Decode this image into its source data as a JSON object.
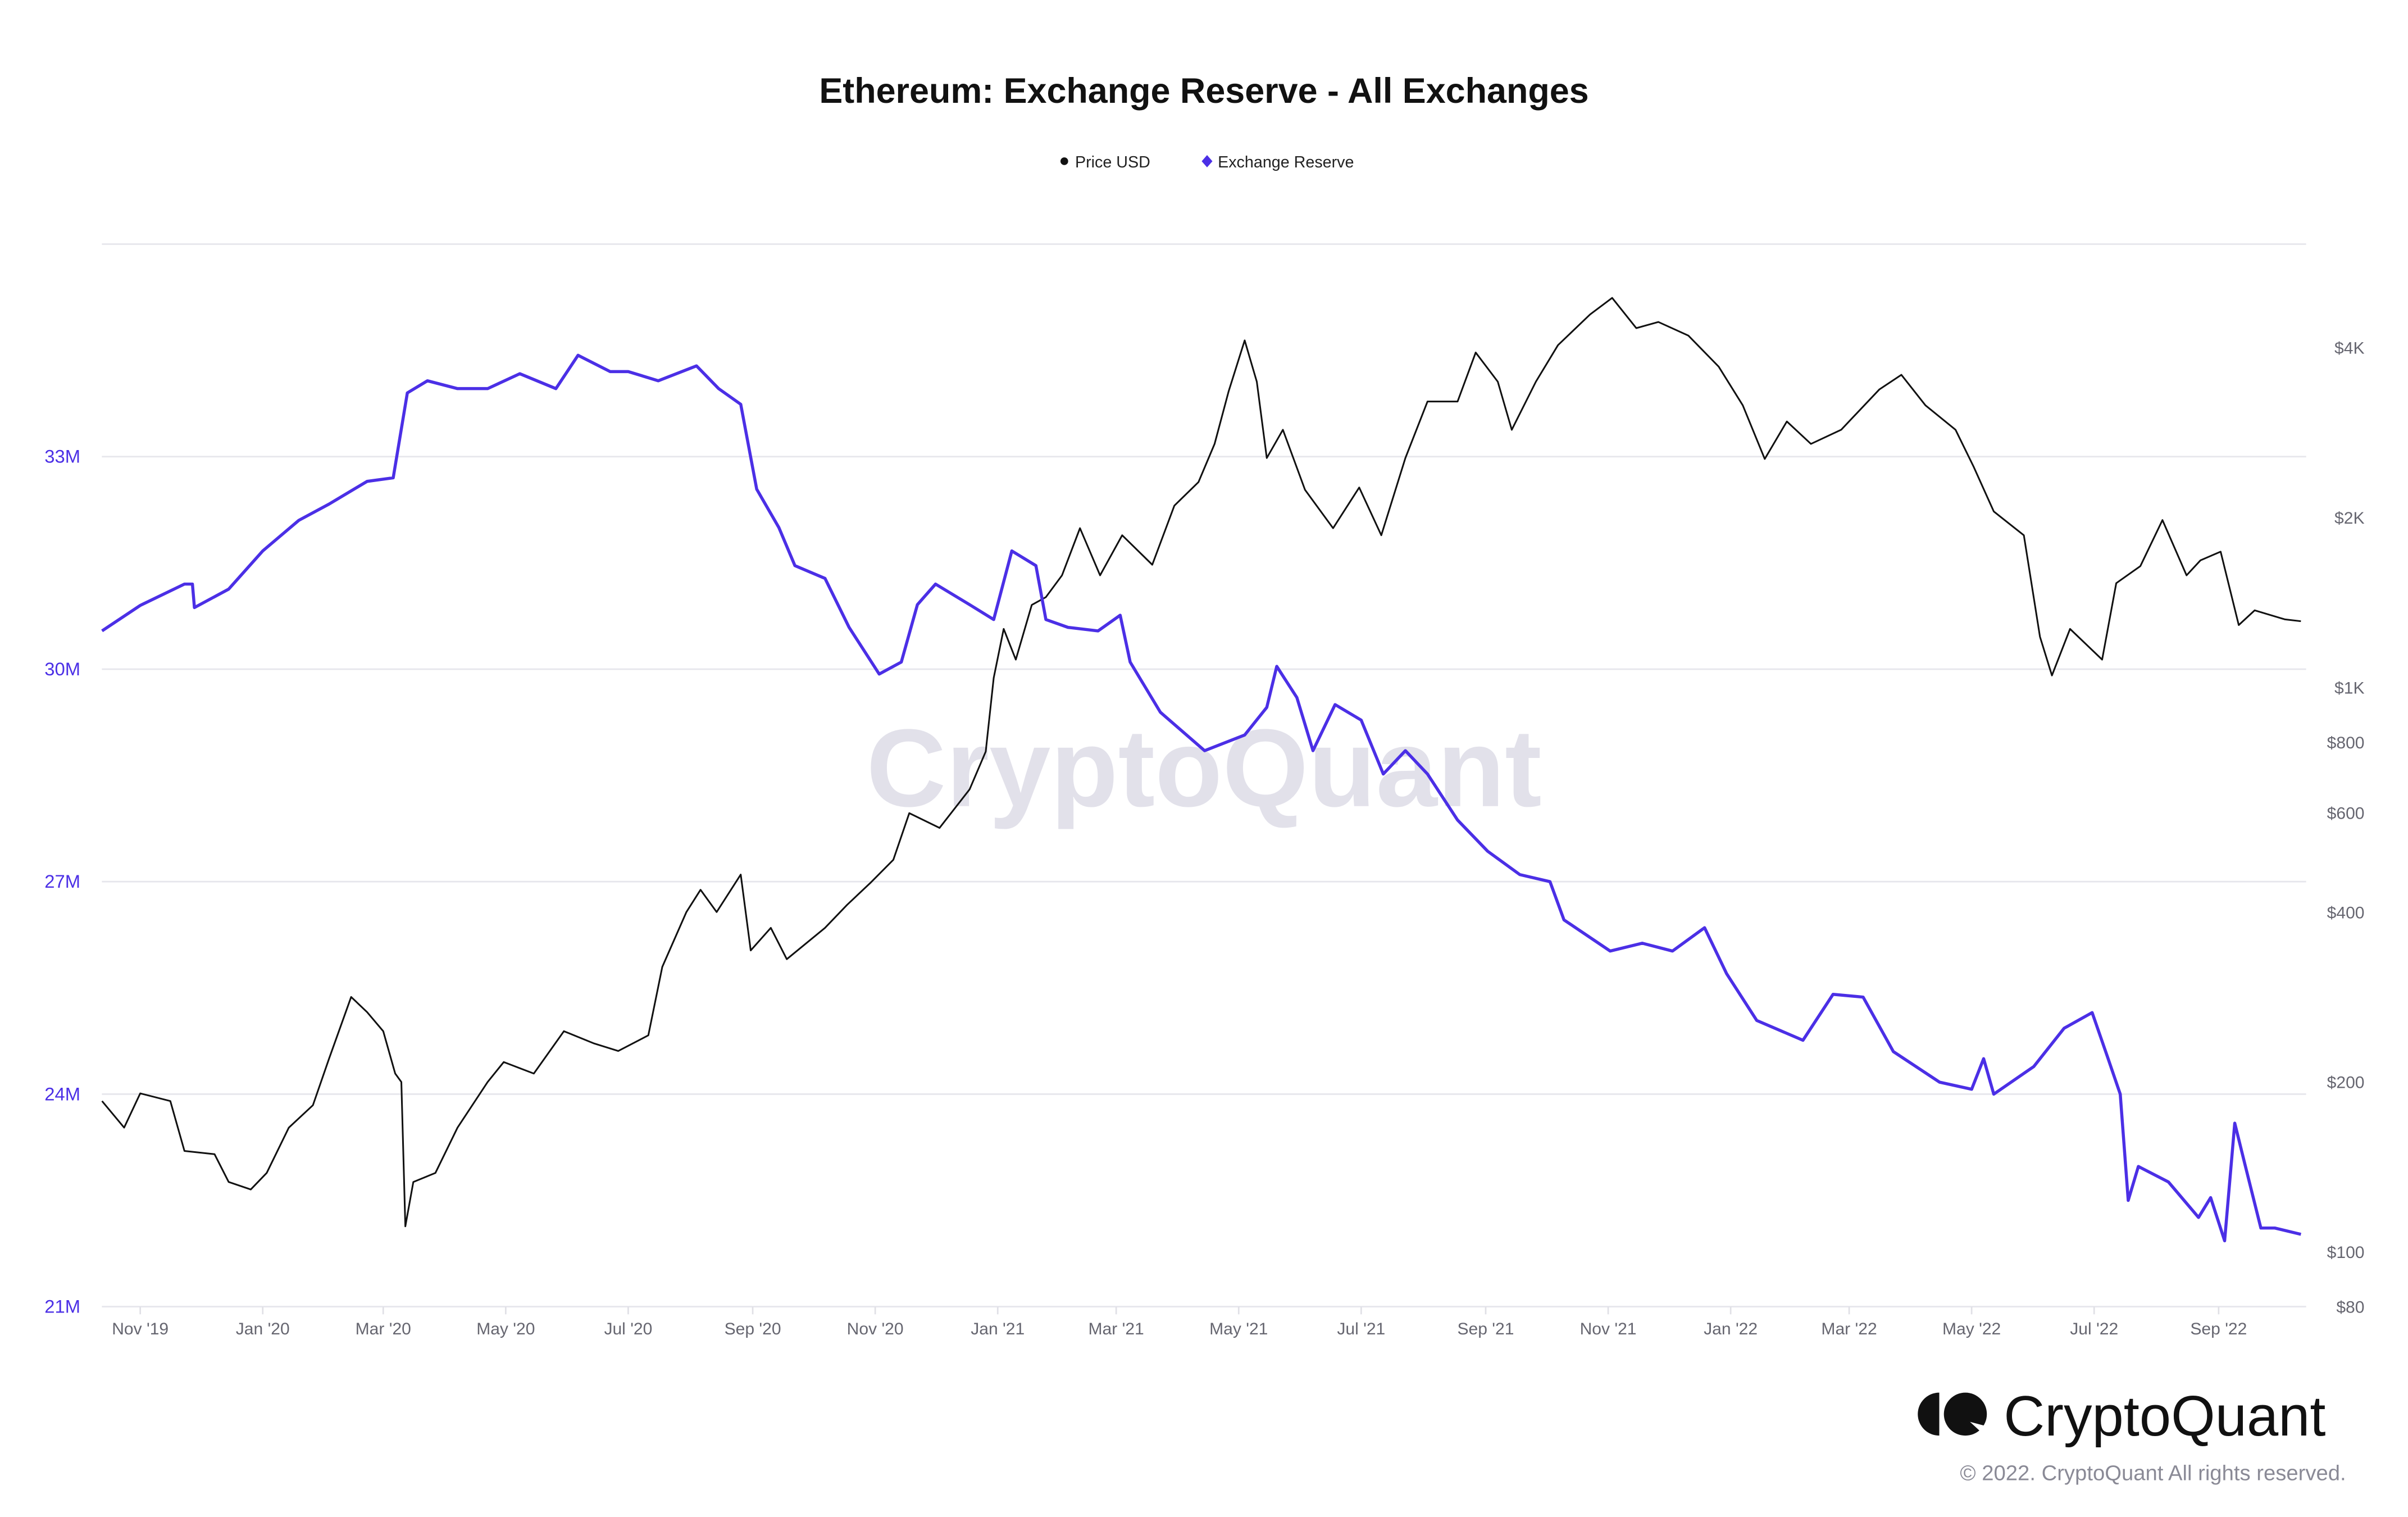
{
  "chart_data": {
    "type": "line",
    "title": "Ethereum: Exchange Reserve - All Exchanges",
    "legend": [
      {
        "label": "Price USD",
        "color": "#111111",
        "marker": "circle"
      },
      {
        "label": "Exchange Reserve",
        "color": "#4b2fe6",
        "marker": "diamond"
      }
    ],
    "legend_position": "top-center",
    "grid": true,
    "left_axis": {
      "unit": "M",
      "range": [
        21,
        36
      ],
      "ticks": [
        {
          "value": 21,
          "label": "21M"
        },
        {
          "value": 24,
          "label": "24M"
        },
        {
          "value": 27,
          "label": "27M"
        },
        {
          "value": 30,
          "label": "30M"
        },
        {
          "value": 33,
          "label": "33M"
        }
      ]
    },
    "right_axis": {
      "scale": "log",
      "range": [
        80,
        6100
      ],
      "ticks": [
        {
          "value": 80,
          "label": "$80"
        },
        {
          "value": 100,
          "label": "$100"
        },
        {
          "value": 200,
          "label": "$200"
        },
        {
          "value": 400,
          "label": "$400"
        },
        {
          "value": 600,
          "label": "$600"
        },
        {
          "value": 800,
          "label": "$800"
        },
        {
          "value": 1000,
          "label": "$1K"
        },
        {
          "value": 2000,
          "label": "$2K"
        },
        {
          "value": 4000,
          "label": "$4K"
        }
      ]
    },
    "x_axis": {
      "range": [
        "2019-10-13",
        "2022-10-12"
      ],
      "ticks": [
        {
          "date": "2019-11-01",
          "label": "Nov '19"
        },
        {
          "date": "2020-01-01",
          "label": "Jan '20"
        },
        {
          "date": "2020-03-01",
          "label": "Mar '20"
        },
        {
          "date": "2020-05-01",
          "label": "May '20"
        },
        {
          "date": "2020-07-01",
          "label": "Jul '20"
        },
        {
          "date": "2020-09-01",
          "label": "Sep '20"
        },
        {
          "date": "2020-11-01",
          "label": "Nov '20"
        },
        {
          "date": "2021-01-01",
          "label": "Jan '21"
        },
        {
          "date": "2021-03-01",
          "label": "Mar '21"
        },
        {
          "date": "2021-05-01",
          "label": "May '21"
        },
        {
          "date": "2021-07-01",
          "label": "Jul '21"
        },
        {
          "date": "2021-09-01",
          "label": "Sep '21"
        },
        {
          "date": "2021-11-01",
          "label": "Nov '21"
        },
        {
          "date": "2022-01-01",
          "label": "Jan '22"
        },
        {
          "date": "2022-03-01",
          "label": "Mar '22"
        },
        {
          "date": "2022-05-01",
          "label": "May '22"
        },
        {
          "date": "2022-07-01",
          "label": "Jul '22"
        },
        {
          "date": "2022-09-01",
          "label": "Sep '22"
        }
      ]
    },
    "series": [
      {
        "name": "Price USD",
        "axis": "right",
        "color": "#111111",
        "points": [
          [
            "2019-10-13",
            185
          ],
          [
            "2019-10-24",
            166
          ],
          [
            "2019-11-01",
            191
          ],
          [
            "2019-11-16",
            185
          ],
          [
            "2019-11-23",
            151
          ],
          [
            "2019-12-08",
            149
          ],
          [
            "2019-12-15",
            133
          ],
          [
            "2019-12-26",
            129
          ],
          [
            "2020-01-03",
            138
          ],
          [
            "2020-01-14",
            166
          ],
          [
            "2020-01-26",
            182
          ],
          [
            "2020-02-03",
            220
          ],
          [
            "2020-02-14",
            283
          ],
          [
            "2020-02-22",
            266
          ],
          [
            "2020-03-01",
            246
          ],
          [
            "2020-03-07",
            207
          ],
          [
            "2020-03-10",
            200
          ],
          [
            "2020-03-12",
            111
          ],
          [
            "2020-03-16",
            133
          ],
          [
            "2020-03-27",
            138
          ],
          [
            "2020-04-07",
            166
          ],
          [
            "2020-04-22",
            200
          ],
          [
            "2020-04-30",
            217
          ],
          [
            "2020-05-15",
            207
          ],
          [
            "2020-05-30",
            246
          ],
          [
            "2020-06-14",
            234
          ],
          [
            "2020-06-26",
            227
          ],
          [
            "2020-07-11",
            242
          ],
          [
            "2020-07-18",
            320
          ],
          [
            "2020-07-30",
            400
          ],
          [
            "2020-08-06",
            438
          ],
          [
            "2020-08-14",
            400
          ],
          [
            "2020-08-26",
            466
          ],
          [
            "2020-08-31",
            342
          ],
          [
            "2020-09-10",
            375
          ],
          [
            "2020-09-18",
            330
          ],
          [
            "2020-10-07",
            375
          ],
          [
            "2020-10-18",
            412
          ],
          [
            "2020-10-30",
            452
          ],
          [
            "2020-11-10",
            495
          ],
          [
            "2020-11-18",
            599
          ],
          [
            "2020-12-03",
            564
          ],
          [
            "2020-12-18",
            660
          ],
          [
            "2020-12-26",
            770
          ],
          [
            "2020-12-30",
            1040
          ],
          [
            "2021-01-04",
            1270
          ],
          [
            "2021-01-10",
            1120
          ],
          [
            "2021-01-18",
            1400
          ],
          [
            "2021-01-25",
            1445
          ],
          [
            "2021-02-02",
            1580
          ],
          [
            "2021-02-11",
            1915
          ],
          [
            "2021-02-21",
            1580
          ],
          [
            "2021-03-04",
            1860
          ],
          [
            "2021-03-19",
            1650
          ],
          [
            "2021-03-30",
            2100
          ],
          [
            "2021-04-11",
            2310
          ],
          [
            "2021-04-19",
            2700
          ],
          [
            "2021-04-26",
            3350
          ],
          [
            "2021-05-04",
            4120
          ],
          [
            "2021-05-10",
            3480
          ],
          [
            "2021-05-15",
            2550
          ],
          [
            "2021-05-23",
            2860
          ],
          [
            "2021-06-03",
            2240
          ],
          [
            "2021-06-17",
            1915
          ],
          [
            "2021-06-30",
            2260
          ],
          [
            "2021-07-11",
            1860
          ],
          [
            "2021-07-23",
            2550
          ],
          [
            "2021-08-03",
            3210
          ],
          [
            "2021-08-18",
            3210
          ],
          [
            "2021-08-27",
            3920
          ],
          [
            "2021-09-07",
            3480
          ],
          [
            "2021-09-14",
            2860
          ],
          [
            "2021-09-26",
            3480
          ],
          [
            "2021-10-07",
            4040
          ],
          [
            "2021-10-23",
            4580
          ],
          [
            "2021-11-03",
            4900
          ],
          [
            "2021-11-15",
            4330
          ],
          [
            "2021-11-26",
            4440
          ],
          [
            "2021-12-11",
            4200
          ],
          [
            "2021-12-26",
            3700
          ],
          [
            "2022-01-07",
            3160
          ],
          [
            "2022-01-18",
            2540
          ],
          [
            "2022-01-29",
            2960
          ],
          [
            "2022-02-10",
            2700
          ],
          [
            "2022-02-25",
            2860
          ],
          [
            "2022-03-16",
            3370
          ],
          [
            "2022-03-27",
            3580
          ],
          [
            "2022-04-08",
            3160
          ],
          [
            "2022-04-23",
            2860
          ],
          [
            "2022-05-02",
            2460
          ],
          [
            "2022-05-12",
            2050
          ],
          [
            "2022-05-27",
            1860
          ],
          [
            "2022-06-04",
            1230
          ],
          [
            "2022-06-10",
            1050
          ],
          [
            "2022-06-19",
            1270
          ],
          [
            "2022-07-05",
            1120
          ],
          [
            "2022-07-12",
            1530
          ],
          [
            "2022-07-24",
            1640
          ],
          [
            "2022-08-04",
            1980
          ],
          [
            "2022-08-16",
            1580
          ],
          [
            "2022-08-23",
            1680
          ],
          [
            "2022-09-02",
            1740
          ],
          [
            "2022-09-11",
            1290
          ],
          [
            "2022-09-19",
            1370
          ],
          [
            "2022-10-04",
            1320
          ],
          [
            "2022-10-12",
            1310
          ]
        ]
      },
      {
        "name": "Exchange Reserve",
        "axis": "left",
        "color": "#4b2fe6",
        "points": [
          [
            "2019-10-13",
            30.54
          ],
          [
            "2019-11-01",
            30.9
          ],
          [
            "2019-11-23",
            31.2
          ],
          [
            "2019-11-27",
            31.2
          ],
          [
            "2019-11-28",
            30.87
          ],
          [
            "2019-12-15",
            31.13
          ],
          [
            "2020-01-01",
            31.67
          ],
          [
            "2020-01-19",
            32.1
          ],
          [
            "2020-02-03",
            32.33
          ],
          [
            "2020-02-22",
            32.65
          ],
          [
            "2020-03-06",
            32.7
          ],
          [
            "2020-03-13",
            33.9
          ],
          [
            "2020-03-23",
            34.07
          ],
          [
            "2020-04-07",
            33.96
          ],
          [
            "2020-04-22",
            33.96
          ],
          [
            "2020-05-08",
            34.17
          ],
          [
            "2020-05-26",
            33.96
          ],
          [
            "2020-06-06",
            34.43
          ],
          [
            "2020-06-22",
            34.2
          ],
          [
            "2020-07-01",
            34.2
          ],
          [
            "2020-07-16",
            34.07
          ],
          [
            "2020-08-04",
            34.28
          ],
          [
            "2020-08-15",
            33.96
          ],
          [
            "2020-08-26",
            33.74
          ],
          [
            "2020-09-03",
            32.54
          ],
          [
            "2020-09-14",
            32.0
          ],
          [
            "2020-09-22",
            31.46
          ],
          [
            "2020-10-07",
            31.28
          ],
          [
            "2020-10-19",
            30.59
          ],
          [
            "2020-11-03",
            29.93
          ],
          [
            "2020-11-14",
            30.1
          ],
          [
            "2020-11-22",
            30.91
          ],
          [
            "2020-12-01",
            31.2
          ],
          [
            "2020-12-18",
            30.91
          ],
          [
            "2020-12-30",
            30.7
          ],
          [
            "2021-01-08",
            31.67
          ],
          [
            "2021-01-20",
            31.46
          ],
          [
            "2021-01-25",
            30.7
          ],
          [
            "2021-02-05",
            30.59
          ],
          [
            "2021-02-20",
            30.54
          ],
          [
            "2021-03-03",
            30.76
          ],
          [
            "2021-03-08",
            30.1
          ],
          [
            "2021-03-23",
            29.39
          ],
          [
            "2021-04-14",
            28.85
          ],
          [
            "2021-05-04",
            29.07
          ],
          [
            "2021-05-15",
            29.46
          ],
          [
            "2021-05-20",
            30.04
          ],
          [
            "2021-05-30",
            29.6
          ],
          [
            "2021-06-07",
            28.85
          ],
          [
            "2021-06-18",
            29.5
          ],
          [
            "2021-07-01",
            29.28
          ],
          [
            "2021-07-12",
            28.52
          ],
          [
            "2021-07-23",
            28.85
          ],
          [
            "2021-08-03",
            28.52
          ],
          [
            "2021-08-18",
            27.87
          ],
          [
            "2021-09-02",
            27.43
          ],
          [
            "2021-09-18",
            27.1
          ],
          [
            "2021-10-03",
            27.0
          ],
          [
            "2021-10-10",
            26.46
          ],
          [
            "2021-11-02",
            26.02
          ],
          [
            "2021-11-18",
            26.13
          ],
          [
            "2021-12-03",
            26.02
          ],
          [
            "2021-12-19",
            26.35
          ],
          [
            "2021-12-30",
            25.7
          ],
          [
            "2022-01-14",
            25.04
          ],
          [
            "2022-02-06",
            24.76
          ],
          [
            "2022-02-21",
            25.41
          ],
          [
            "2022-03-08",
            25.37
          ],
          [
            "2022-03-23",
            24.6
          ],
          [
            "2022-04-15",
            24.17
          ],
          [
            "2022-05-01",
            24.07
          ],
          [
            "2022-05-07",
            24.5
          ],
          [
            "2022-05-12",
            24.0
          ],
          [
            "2022-06-01",
            24.39
          ],
          [
            "2022-06-16",
            24.93
          ],
          [
            "2022-06-30",
            25.15
          ],
          [
            "2022-07-08",
            24.5
          ],
          [
            "2022-07-14",
            24.0
          ],
          [
            "2022-07-18",
            22.5
          ],
          [
            "2022-07-23",
            22.98
          ],
          [
            "2022-08-07",
            22.76
          ],
          [
            "2022-08-22",
            22.26
          ],
          [
            "2022-08-28",
            22.54
          ],
          [
            "2022-09-04",
            21.93
          ],
          [
            "2022-09-09",
            23.59
          ],
          [
            "2022-09-14",
            23.02
          ],
          [
            "2022-09-22",
            22.11
          ],
          [
            "2022-09-29",
            22.11
          ],
          [
            "2022-10-12",
            22.02
          ]
        ]
      }
    ]
  },
  "watermark": "CryptoQuant",
  "branding": {
    "logo_text": "CryptoQuant",
    "copyright": "© 2022. CryptoQuant All rights reserved."
  }
}
